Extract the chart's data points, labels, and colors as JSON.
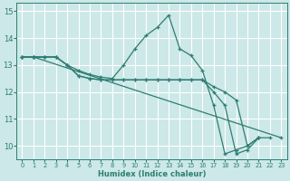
{
  "xlabel": "Humidex (Indice chaleur)",
  "xlim": [
    -0.5,
    23.5
  ],
  "ylim": [
    9.5,
    15.3
  ],
  "yticks": [
    10,
    11,
    12,
    13,
    14,
    15
  ],
  "xticks": [
    0,
    1,
    2,
    3,
    4,
    5,
    6,
    7,
    8,
    9,
    10,
    11,
    12,
    13,
    14,
    15,
    16,
    17,
    18,
    19,
    20,
    21,
    22,
    23
  ],
  "bg_color": "#cce8e8",
  "line_color": "#2e7d72",
  "grid_color": "#ffffff",
  "lines": [
    {
      "x": [
        0,
        1,
        2,
        3,
        4,
        5,
        6,
        7,
        8,
        9,
        10,
        11,
        12,
        13,
        14,
        15,
        16,
        17,
        18,
        19,
        20,
        21,
        22
      ],
      "y": [
        13.3,
        13.3,
        13.3,
        13.3,
        13.0,
        12.8,
        12.65,
        12.55,
        12.5,
        13.0,
        13.6,
        14.1,
        14.4,
        14.85,
        13.6,
        13.35,
        12.8,
        11.5,
        9.7,
        9.85,
        10.0,
        10.3,
        10.3
      ]
    },
    {
      "x": [
        0,
        1,
        2,
        3,
        4,
        5,
        6,
        7,
        8,
        9,
        10,
        11,
        12,
        13,
        14,
        15,
        16,
        17,
        18,
        19,
        20,
        21
      ],
      "y": [
        13.3,
        13.3,
        13.3,
        13.3,
        13.0,
        12.6,
        12.5,
        12.45,
        12.45,
        12.45,
        12.45,
        12.45,
        12.45,
        12.45,
        12.45,
        12.45,
        12.45,
        12.2,
        12.0,
        11.7,
        10.0,
        10.3
      ]
    },
    {
      "x": [
        0,
        1,
        2,
        3,
        4,
        5,
        6,
        7,
        8,
        9,
        10,
        11,
        12,
        13,
        14,
        15,
        16,
        17,
        18,
        19,
        20,
        21
      ],
      "y": [
        13.3,
        13.3,
        13.3,
        13.3,
        13.0,
        12.6,
        12.5,
        12.45,
        12.45,
        12.45,
        12.45,
        12.45,
        12.45,
        12.45,
        12.45,
        12.45,
        12.45,
        12.0,
        11.5,
        9.7,
        9.85,
        10.3
      ]
    },
    {
      "x": [
        0,
        1,
        23
      ],
      "y": [
        13.3,
        13.3,
        10.3
      ]
    }
  ]
}
